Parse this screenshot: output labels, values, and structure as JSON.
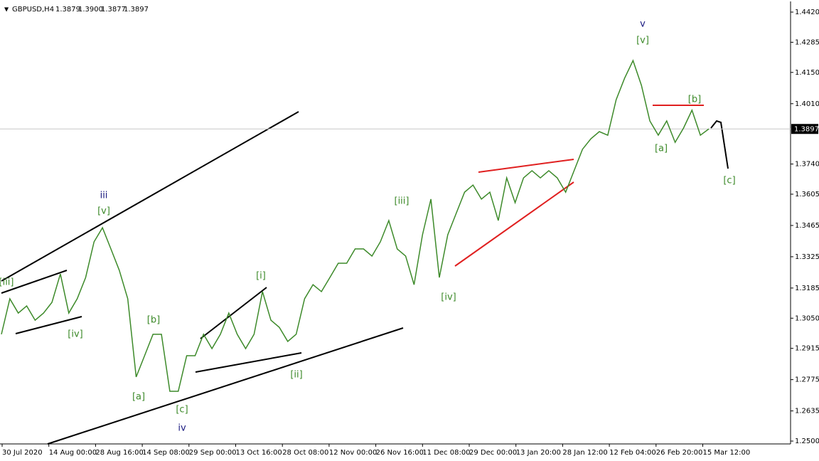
{
  "header": {
    "symbol": "GBPUSD,H4",
    "ohlc": [
      "1.3879",
      "1.3900",
      "1.3877",
      "1.3897"
    ]
  },
  "chart_data": {
    "type": "line",
    "series": [
      {
        "name": "GBPUSD",
        "color": "#3d8a2a",
        "values": [
          1.2978,
          1.3137,
          1.3073,
          1.3105,
          1.3041,
          1.3073,
          1.3121,
          1.3248,
          1.3073,
          1.3137,
          1.3232,
          1.3392,
          1.3455,
          1.336,
          1.3264,
          1.3137,
          1.2787,
          1.2882,
          1.2978,
          1.2978,
          1.2723,
          1.2723,
          1.2882,
          1.2882,
          1.2978,
          1.2914,
          1.2978,
          1.3073,
          1.2978,
          1.2914,
          1.2978,
          1.3169,
          1.3041,
          1.3009,
          1.2946,
          1.2978,
          1.3137,
          1.32,
          1.3169,
          1.3232,
          1.3296,
          1.3296,
          1.336,
          1.336,
          1.3328,
          1.3392,
          1.3487,
          1.336,
          1.3328,
          1.32,
          1.3423,
          1.3583,
          1.3232,
          1.3423,
          1.3519,
          1.3614,
          1.3646,
          1.3583,
          1.3614,
          1.3487,
          1.3678,
          1.3567,
          1.3678,
          1.371,
          1.3678,
          1.371,
          1.3678,
          1.3614,
          1.371,
          1.3806,
          1.3853,
          1.3885,
          1.3869,
          1.4028,
          1.4124,
          1.4203,
          1.4092,
          1.3933,
          1.3869,
          1.3933,
          1.3837,
          1.3901,
          1.3981,
          1.3869,
          1.3897
        ]
      }
    ],
    "x_labels": [
      "30 Jul 2020",
      "14 Aug 00:00",
      "28 Aug 16:00",
      "14 Sep 08:00",
      "29 Sep 00:00",
      "13 Oct 16:00",
      "28 Oct 08:00",
      "12 Nov 00:00",
      "26 Nov 16:00",
      "11 Dec 08:00",
      "29 Dec 00:00",
      "13 Jan 20:00",
      "28 Jan 12:00",
      "12 Feb 04:00",
      "26 Feb 20:00",
      "15 Mar 12:00"
    ],
    "ylim": [
      1.25,
      1.442
    ],
    "yticks": [
      {
        "value": 1.25,
        "label": "1.2500"
      },
      {
        "value": 1.2635,
        "label": "1.2635"
      },
      {
        "value": 1.2775,
        "label": "1.2775"
      },
      {
        "value": 1.2915,
        "label": "1.2915"
      },
      {
        "value": 1.305,
        "label": "1.3050"
      },
      {
        "value": 1.3185,
        "label": "1.3185"
      },
      {
        "value": 1.3325,
        "label": "1.3325"
      },
      {
        "value": 1.3465,
        "label": "1.3465"
      },
      {
        "value": 1.3605,
        "label": "1.3605"
      },
      {
        "value": 1.374,
        "label": "1.3740"
      },
      {
        "value": 1.401,
        "label": "1.4010"
      },
      {
        "value": 1.415,
        "label": "1.4150"
      },
      {
        "value": 1.4285,
        "label": "1.4285"
      },
      {
        "value": 1.442,
        "label": "1.4420"
      }
    ],
    "last_price": {
      "value": 1.3897,
      "label": "1.3897"
    },
    "annotations": [
      {
        "text": "[iii]",
        "color": "#3d8a2a"
      },
      {
        "text": "[iv]",
        "color": "#3d8a2a"
      },
      {
        "text": "iii",
        "color": "#1a1a80"
      },
      {
        "text": "[v]",
        "color": "#3d8a2a"
      },
      {
        "text": "[a]",
        "color": "#3d8a2a"
      },
      {
        "text": "[b]",
        "color": "#3d8a2a"
      },
      {
        "text": "[c]",
        "color": "#3d8a2a"
      },
      {
        "text": "iv",
        "color": "#1a1a80"
      },
      {
        "text": "[i]",
        "color": "#3d8a2a"
      },
      {
        "text": "[ii]",
        "color": "#3d8a2a"
      },
      {
        "text": "[iii]",
        "color": "#3d8a2a"
      },
      {
        "text": "[iv]",
        "color": "#3d8a2a"
      },
      {
        "text": "v",
        "color": "#1a1a80"
      },
      {
        "text": "[v]",
        "color": "#3d8a2a"
      },
      {
        "text": "[a]",
        "color": "#3d8a2a"
      },
      {
        "text": "[b]",
        "color": "#3d8a2a"
      },
      {
        "text": "[c]",
        "color": "#3d8a2a"
      }
    ]
  }
}
